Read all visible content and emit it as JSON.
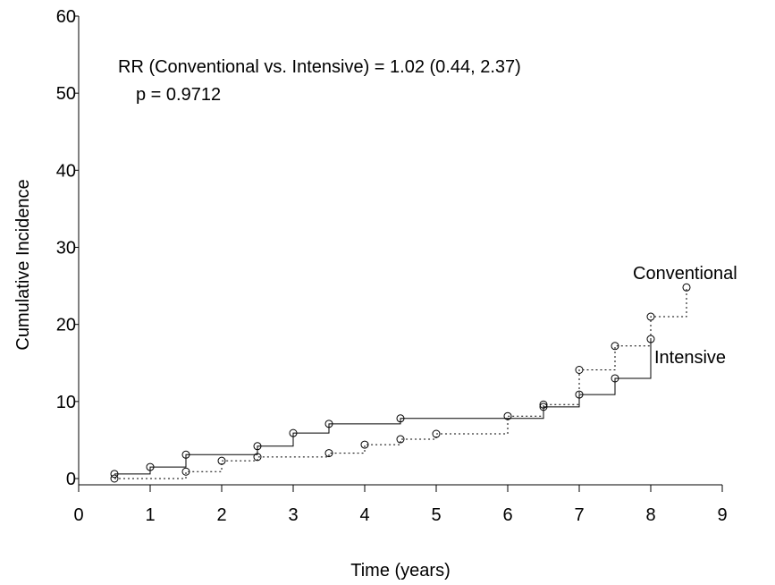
{
  "chart_data": {
    "type": "line",
    "title": "",
    "xlabel": "Time (years)",
    "ylabel": "Cumulative Incidence",
    "xlim": [
      0,
      9
    ],
    "ylim": [
      0,
      60
    ],
    "x_ticks": [
      0,
      1,
      2,
      3,
      4,
      5,
      6,
      7,
      8,
      9
    ],
    "y_ticks": [
      0,
      10,
      20,
      30,
      40,
      50,
      60
    ],
    "grid": false,
    "annotations": [
      "RR (Conventional vs. Intensive) = 1.02 (0.44, 2.37)",
      "p = 0.9712"
    ],
    "series": [
      {
        "name": "Intensive",
        "line_style": "solid",
        "color": "#000000",
        "step_points": [
          [
            0.5,
            0.6
          ],
          [
            1.0,
            1.5
          ],
          [
            1.5,
            3.1
          ],
          [
            2.5,
            4.2
          ],
          [
            3.0,
            5.9
          ],
          [
            3.5,
            7.1
          ],
          [
            4.5,
            7.8
          ],
          [
            6.5,
            9.3
          ],
          [
            7.0,
            10.9
          ],
          [
            7.5,
            13.0
          ],
          [
            8.0,
            18.1
          ]
        ]
      },
      {
        "name": "Conventional",
        "line_style": "dotted",
        "color": "#000000",
        "step_points": [
          [
            0.5,
            0.0
          ],
          [
            1.5,
            0.9
          ],
          [
            2.0,
            2.3
          ],
          [
            2.5,
            2.8
          ],
          [
            3.5,
            3.3
          ],
          [
            4.0,
            4.4
          ],
          [
            4.5,
            5.1
          ],
          [
            5.0,
            5.8
          ],
          [
            6.0,
            8.1
          ],
          [
            6.5,
            9.6
          ],
          [
            7.0,
            14.1
          ],
          [
            7.5,
            17.2
          ],
          [
            8.0,
            21.0
          ],
          [
            8.5,
            24.8
          ]
        ]
      }
    ]
  }
}
